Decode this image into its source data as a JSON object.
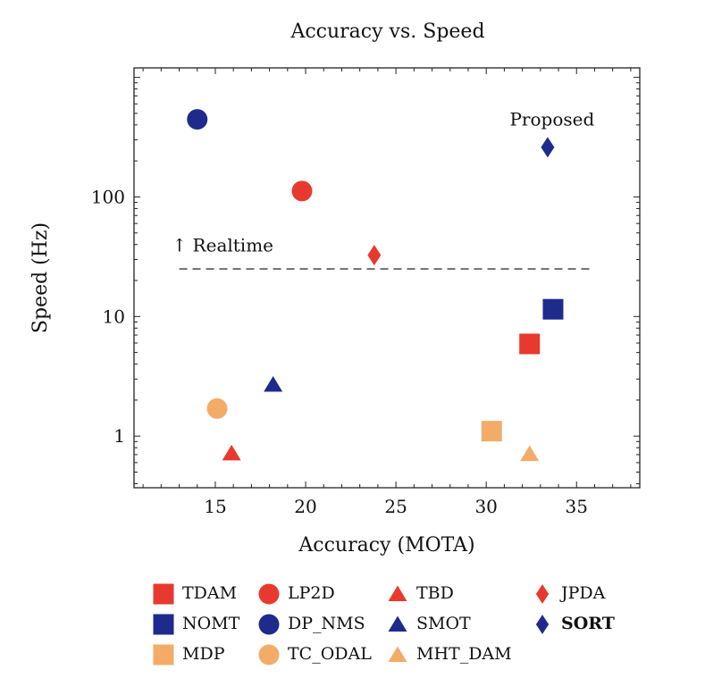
{
  "chart_data": {
    "type": "scatter",
    "title": "Accuracy vs. Speed",
    "xlabel": "Accuracy (MOTA)",
    "ylabel": "Speed (Hz)",
    "xlim": [
      10.5,
      38.5
    ],
    "ylim": [
      0.37,
      1200
    ],
    "yscale": "log",
    "xticks": [
      15,
      20,
      25,
      30,
      35
    ],
    "yticks": [
      1,
      10,
      100
    ],
    "ytick_labels": [
      "1",
      "10",
      "100"
    ],
    "colors": {
      "red": "#E8392F",
      "navy": "#1F2B8C",
      "tan": "#F2AC67",
      "dash": "#555555"
    },
    "series": [
      {
        "name": "TDAM",
        "x": 32.4,
        "y": 5.9,
        "marker": "square",
        "color": "red"
      },
      {
        "name": "LP2D",
        "x": 19.8,
        "y": 112,
        "marker": "circle",
        "color": "red"
      },
      {
        "name": "TBD",
        "x": 15.9,
        "y": 0.72,
        "marker": "triangle",
        "color": "red"
      },
      {
        "name": "JPDA",
        "x": 23.8,
        "y": 32.6,
        "marker": "diamond",
        "color": "red"
      },
      {
        "name": "NOMT",
        "x": 33.7,
        "y": 11.5,
        "marker": "square",
        "color": "navy"
      },
      {
        "name": "DP_NMS",
        "x": 14.0,
        "y": 445,
        "marker": "circle",
        "color": "navy"
      },
      {
        "name": "SMOT",
        "x": 18.2,
        "y": 2.7,
        "marker": "triangle",
        "color": "navy"
      },
      {
        "name": "SORT",
        "x": 33.4,
        "y": 260,
        "marker": "diamond",
        "color": "navy",
        "bold": true
      },
      {
        "name": "MDP",
        "x": 30.3,
        "y": 1.1,
        "marker": "square",
        "color": "tan"
      },
      {
        "name": "TC_ODAL",
        "x": 15.1,
        "y": 1.7,
        "marker": "circle",
        "color": "tan"
      },
      {
        "name": "MHT_DAM",
        "x": 32.4,
        "y": 0.71,
        "marker": "triangle",
        "color": "tan"
      }
    ],
    "realtime_line": {
      "y": 25,
      "x_start": 13,
      "x_end": 36
    },
    "annotations": [
      {
        "text": "↑ Realtime",
        "x": 12.6,
        "y": 35,
        "name": "realtime-label"
      },
      {
        "text": "Proposed",
        "x": 31.3,
        "y": 395,
        "name": "proposed-label"
      }
    ],
    "legend": {
      "placement": "bottom",
      "items": [
        {
          "label": "TDAM",
          "marker": "square",
          "color": "red"
        },
        {
          "label": "LP2D",
          "marker": "circle",
          "color": "red"
        },
        {
          "label": "TBD",
          "marker": "triangle",
          "color": "red"
        },
        {
          "label": "JPDA",
          "marker": "diamond",
          "color": "red"
        },
        {
          "label": "NOMT",
          "marker": "square",
          "color": "navy"
        },
        {
          "label": "DP_NMS",
          "marker": "circle",
          "color": "navy"
        },
        {
          "label": "SMOT",
          "marker": "triangle",
          "color": "navy"
        },
        {
          "label": "SORT",
          "marker": "diamond",
          "color": "navy",
          "bold": true
        },
        {
          "label": "MDP",
          "marker": "square",
          "color": "tan"
        },
        {
          "label": "TC_ODAL",
          "marker": "circle",
          "color": "tan"
        },
        {
          "label": "MHT_DAM",
          "marker": "triangle",
          "color": "tan"
        }
      ]
    }
  }
}
